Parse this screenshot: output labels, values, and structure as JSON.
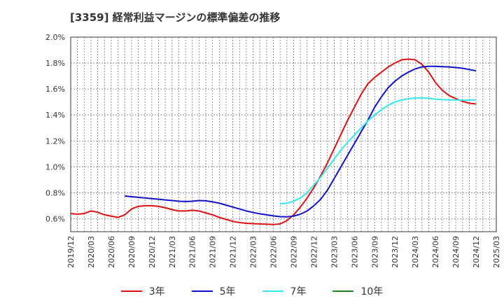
{
  "title": "[3359]  経常利益マージンの標準偏差の推移",
  "chart_data": {
    "type": "line",
    "title": "[3359]  経常利益マージンの標準偏差の推移",
    "xlabel": "",
    "ylabel": "",
    "ylim": [
      0.5,
      2.0
    ],
    "yticks": [
      "0.6%",
      "0.8%",
      "1.0%",
      "1.2%",
      "1.4%",
      "1.6%",
      "1.8%",
      "2.0%"
    ],
    "xticks": [
      "2019/12",
      "2020/03",
      "2020/06",
      "2020/09",
      "2020/12",
      "2021/03",
      "2021/06",
      "2021/09",
      "2021/12",
      "2022/03",
      "2022/06",
      "2022/09",
      "2022/12",
      "2023/03",
      "2023/06",
      "2023/09",
      "2023/12",
      "2024/03",
      "2024/06",
      "2024/09",
      "2024/12",
      "2025/03"
    ],
    "grid": true,
    "legend_position": "bottom",
    "series": [
      {
        "name": "3年",
        "color": "#dd1111",
        "start_index": 0,
        "values": [
          0.64,
          0.635,
          0.64,
          0.66,
          0.65,
          0.63,
          0.62,
          0.61,
          0.63,
          0.675,
          0.695,
          0.7,
          0.7,
          0.695,
          0.685,
          0.67,
          0.66,
          0.66,
          0.665,
          0.66,
          0.645,
          0.63,
          0.61,
          0.595,
          0.58,
          0.57,
          0.565,
          0.562,
          0.56,
          0.558,
          0.555,
          0.56,
          0.585,
          0.63,
          0.69,
          0.76,
          0.84,
          0.93,
          1.03,
          1.14,
          1.25,
          1.36,
          1.46,
          1.56,
          1.64,
          1.69,
          1.73,
          1.77,
          1.8,
          1.825,
          1.83,
          1.825,
          1.79,
          1.73,
          1.65,
          1.59,
          1.55,
          1.525,
          1.505,
          1.49,
          1.485
        ]
      },
      {
        "name": "5年",
        "color": "#1111cc",
        "start_index": 8,
        "values": [
          0.775,
          0.77,
          0.765,
          0.76,
          0.755,
          0.75,
          0.745,
          0.74,
          0.735,
          0.733,
          0.735,
          0.74,
          0.738,
          0.73,
          0.72,
          0.705,
          0.69,
          0.675,
          0.66,
          0.648,
          0.638,
          0.63,
          0.622,
          0.616,
          0.615,
          0.62,
          0.635,
          0.66,
          0.7,
          0.75,
          0.82,
          0.91,
          1.0,
          1.09,
          1.18,
          1.27,
          1.36,
          1.46,
          1.54,
          1.61,
          1.66,
          1.7,
          1.73,
          1.755,
          1.77,
          1.775,
          1.775,
          1.772,
          1.77,
          1.765,
          1.76,
          1.75,
          1.74
        ]
      },
      {
        "name": "7年",
        "color": "#33e8ee",
        "start_index": 31,
        "values": [
          0.715,
          0.72,
          0.735,
          0.76,
          0.8,
          0.86,
          0.92,
          0.99,
          1.06,
          1.13,
          1.19,
          1.245,
          1.3,
          1.355,
          1.4,
          1.44,
          1.475,
          1.5,
          1.515,
          1.525,
          1.53,
          1.532,
          1.528,
          1.522,
          1.518,
          1.516,
          1.515,
          1.514,
          1.515,
          1.516
        ]
      },
      {
        "name": "10年",
        "color": "#228822",
        "start_index": 0,
        "values": []
      }
    ]
  }
}
